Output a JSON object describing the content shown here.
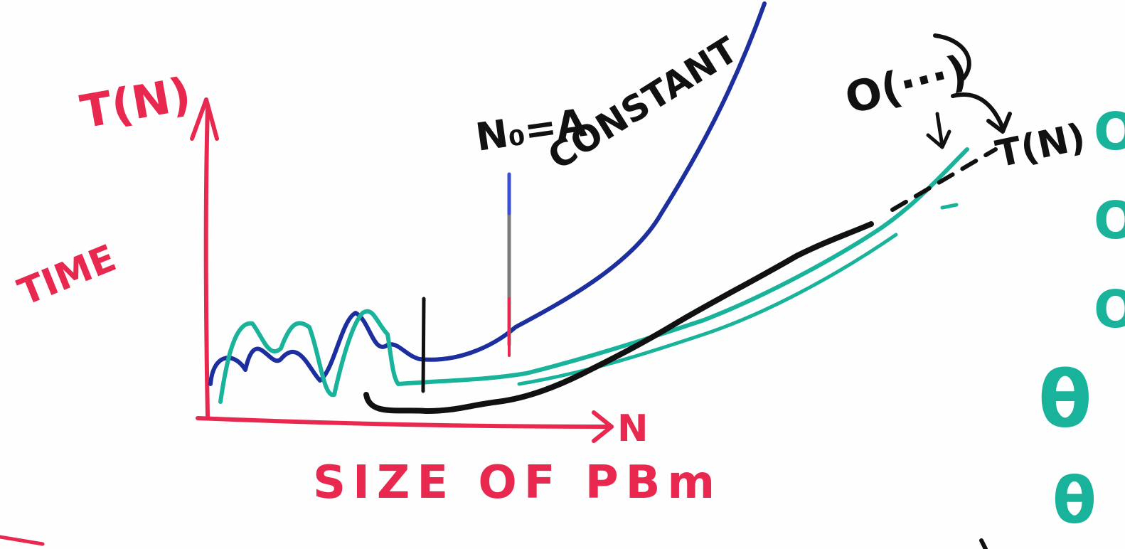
{
  "labels": {
    "y_axis_label": "T(N)",
    "y_axis_title": "TIME",
    "x_axis_label": "N",
    "x_axis_title": "SIZE OF PBm",
    "n0_label": "N₀=A",
    "n0_label_2": "CONSTANT",
    "big_o_label": "O(···)",
    "tn_label": "T(N)",
    "margin_letters": [
      "O",
      "O",
      "O",
      "θ",
      "θ"
    ]
  },
  "colors": {
    "axis": "#e8284e",
    "blue_curve": "#1d2f9e",
    "teal_curve": "#18b39a",
    "black_curve": "#111111",
    "text_black": "#111111"
  }
}
